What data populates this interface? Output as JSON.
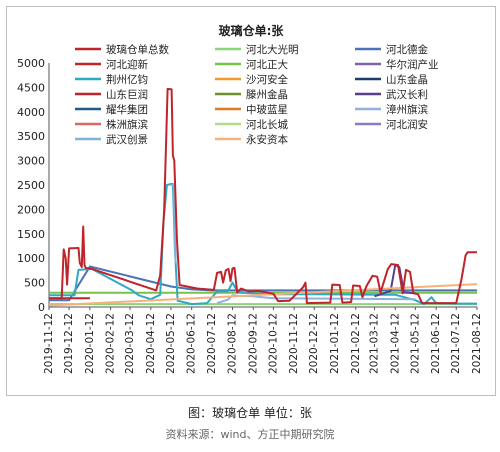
{
  "caption": "图：玻璃仓单 单位：张",
  "source": "资料来源：wind、方正中期研究院",
  "chart_data": {
    "type": "line",
    "title": "玻璃仓单:张",
    "xlabel": "",
    "ylabel": "",
    "ylim": [
      0,
      5000
    ],
    "yticks": [
      0,
      500,
      1000,
      1500,
      2000,
      2500,
      3000,
      3500,
      4000,
      4500,
      5000
    ],
    "xlim": [
      "2019-11-12",
      "2021-08-12"
    ],
    "xticks": [
      "2019-11-12",
      "2019-12-12",
      "2020-01-12",
      "2020-02-12",
      "2020-03-12",
      "2020-04-12",
      "2020-05-12",
      "2020-06-12",
      "2020-07-12",
      "2020-08-12",
      "2020-09-12",
      "2020-10-12",
      "2020-11-12",
      "2020-12-12",
      "2021-01-12",
      "2021-02-12",
      "2021-03-12",
      "2021-04-12",
      "2021-05-12",
      "2021-06-12",
      "2021-07-12",
      "2021-08-12"
    ],
    "grid": false,
    "legend": "top",
    "series": [
      {
        "name": "玻璃仓单总数",
        "color": "#c0242b",
        "points": [
          [
            "2019-11-12",
            180
          ],
          [
            "2019-12-01",
            180
          ],
          [
            "2019-12-04",
            1180
          ],
          [
            "2019-12-07",
            1000
          ],
          [
            "2019-12-09",
            460
          ],
          [
            "2019-12-12",
            1200
          ],
          [
            "2019-12-26",
            1210
          ],
          [
            "2019-12-28",
            900
          ],
          [
            "2019-12-31",
            820
          ],
          [
            "2020-01-02",
            1650
          ],
          [
            "2020-01-04",
            860
          ],
          [
            "2020-01-06",
            800
          ],
          [
            "2020-01-15",
            780
          ],
          [
            "2020-04-20",
            340
          ],
          [
            "2020-04-26",
            650
          ],
          [
            "2020-05-02",
            2000
          ],
          [
            "2020-05-07",
            4470
          ],
          [
            "2020-05-13",
            4460
          ],
          [
            "2020-05-15",
            3100
          ],
          [
            "2020-05-17",
            3000
          ],
          [
            "2020-05-21",
            1400
          ],
          [
            "2020-05-25",
            450
          ],
          [
            "2020-06-20",
            380
          ],
          [
            "2020-07-15",
            350
          ],
          [
            "2020-07-20",
            700
          ],
          [
            "2020-07-26",
            720
          ],
          [
            "2020-07-29",
            500
          ],
          [
            "2020-08-02",
            750
          ],
          [
            "2020-08-06",
            780
          ],
          [
            "2020-08-09",
            530
          ],
          [
            "2020-08-12",
            790
          ],
          [
            "2020-08-15",
            800
          ],
          [
            "2020-08-19",
            300
          ],
          [
            "2020-08-25",
            380
          ],
          [
            "2020-09-05",
            320
          ],
          [
            "2020-09-20",
            330
          ],
          [
            "2020-10-12",
            270
          ],
          [
            "2020-10-19",
            120
          ],
          [
            "2020-11-05",
            130
          ],
          [
            "2020-11-25",
            400
          ],
          [
            "2020-11-29",
            500
          ],
          [
            "2020-12-01",
            80
          ],
          [
            "2021-01-05",
            90
          ],
          [
            "2021-01-08",
            460
          ],
          [
            "2021-01-19",
            450
          ],
          [
            "2021-01-23",
            90
          ],
          [
            "2021-02-05",
            100
          ],
          [
            "2021-02-08",
            440
          ],
          [
            "2021-02-18",
            430
          ],
          [
            "2021-02-22",
            200
          ],
          [
            "2021-02-28",
            430
          ],
          [
            "2021-03-09",
            640
          ],
          [
            "2021-03-16",
            620
          ],
          [
            "2021-03-21",
            300
          ],
          [
            "2021-04-01",
            780
          ],
          [
            "2021-04-06",
            880
          ],
          [
            "2021-04-16",
            860
          ],
          [
            "2021-04-23",
            280
          ],
          [
            "2021-04-28",
            760
          ],
          [
            "2021-05-04",
            720
          ],
          [
            "2021-05-09",
            280
          ],
          [
            "2021-05-16",
            260
          ],
          [
            "2021-05-22",
            80
          ],
          [
            "2021-07-12",
            80
          ],
          [
            "2021-07-20",
            580
          ],
          [
            "2021-07-26",
            1060
          ],
          [
            "2021-07-29",
            1120
          ],
          [
            "2021-08-12",
            1120
          ]
        ]
      },
      {
        "name": "河北大光明",
        "color": "#8ed27a",
        "points": [
          [
            "2019-11-12",
            60
          ],
          [
            "2021-08-12",
            60
          ]
        ]
      },
      {
        "name": "河北德金",
        "color": "#4a74b5",
        "points": [
          [
            "2019-11-12",
            140
          ],
          [
            "2019-12-12",
            140
          ],
          [
            "2020-01-12",
            830
          ],
          [
            "2020-05-12",
            420
          ],
          [
            "2020-06-12",
            360
          ],
          [
            "2020-07-12",
            340
          ],
          [
            "2020-08-12",
            340
          ],
          [
            "2021-08-12",
            340
          ]
        ]
      },
      {
        "name": "河北迎新",
        "color": "#c0242b",
        "points": [
          [
            "2019-11-12",
            180
          ],
          [
            "2020-01-12",
            180
          ]
        ]
      },
      {
        "name": "河北正大",
        "color": "#7ac14a",
        "points": [
          [
            "2019-11-12",
            290
          ],
          [
            "2021-08-12",
            290
          ]
        ]
      },
      {
        "name": "华尔润产业",
        "color": "#8064a2",
        "points": []
      },
      {
        "name": "荆州亿钧",
        "color": "#2ea9c4",
        "points": [
          [
            "2019-11-12",
            240
          ],
          [
            "2019-12-20",
            240
          ],
          [
            "2019-12-26",
            760
          ],
          [
            "2020-01-15",
            780
          ],
          [
            "2020-03-15",
            340
          ],
          [
            "2020-03-25",
            240
          ],
          [
            "2020-04-12",
            160
          ],
          [
            "2020-04-26",
            250
          ],
          [
            "2020-05-01",
            1750
          ],
          [
            "2020-05-06",
            2500
          ],
          [
            "2020-05-12",
            2520
          ],
          [
            "2020-05-15",
            2520
          ],
          [
            "2020-05-18",
            1200
          ],
          [
            "2020-05-22",
            130
          ],
          [
            "2020-06-12",
            60
          ],
          [
            "2020-07-05",
            80
          ],
          [
            "2020-07-20",
            320
          ],
          [
            "2020-08-05",
            320
          ],
          [
            "2020-08-12",
            500
          ],
          [
            "2020-08-20",
            300
          ],
          [
            "2020-10-12",
            260
          ],
          [
            "2020-12-12",
            260
          ],
          [
            "2021-04-12",
            250
          ],
          [
            "2021-05-12",
            140
          ],
          [
            "2021-05-25",
            60
          ],
          [
            "2021-06-05",
            200
          ],
          [
            "2021-06-12",
            80
          ],
          [
            "2021-07-12",
            70
          ],
          [
            "2021-08-12",
            70
          ]
        ]
      },
      {
        "name": "沙河安全",
        "color": "#f39a2b",
        "points": []
      },
      {
        "name": "山东金晶",
        "color": "#1f3a6b",
        "points": []
      },
      {
        "name": "山东巨润",
        "color": "#c0242b",
        "points": []
      },
      {
        "name": "滕州金晶",
        "color": "#6f8f2a",
        "points": []
      },
      {
        "name": "武汉长利",
        "color": "#5c3d8c",
        "points": [
          [
            "2021-03-12",
            220
          ],
          [
            "2021-04-05",
            330
          ],
          [
            "2021-04-12",
            860
          ],
          [
            "2021-04-18",
            820
          ],
          [
            "2021-04-25",
            300
          ],
          [
            "2021-05-12",
            280
          ]
        ]
      },
      {
        "name": "耀华集团",
        "color": "#1f5c8c",
        "points": []
      },
      {
        "name": "中玻蓝星",
        "color": "#e07b22",
        "points": []
      },
      {
        "name": "漳州旗滨",
        "color": "#8fb1dc",
        "points": [
          [
            "2020-07-20",
            80
          ],
          [
            "2020-08-05",
            150
          ],
          [
            "2020-08-12",
            240
          ],
          [
            "2020-08-20",
            230
          ],
          [
            "2020-09-12",
            220
          ],
          [
            "2020-10-12",
            180
          ],
          [
            "2021-05-12",
            160
          ]
        ]
      },
      {
        "name": "株洲旗滨",
        "color": "#e06666",
        "points": []
      },
      {
        "name": "河北长城",
        "color": "#b6d98a",
        "points": []
      },
      {
        "name": "河北润安",
        "color": "#8e7cc3",
        "points": []
      },
      {
        "name": "武汉创景",
        "color": "#7fb3d5",
        "points": [
          [
            "2020-05-12",
            2500
          ],
          [
            "2020-05-16",
            2500
          ],
          [
            "2020-05-19",
            900
          ]
        ]
      },
      {
        "name": "永安资本",
        "color": "#f6b17a",
        "points": [
          [
            "2019-11-12",
            30
          ],
          [
            "2021-08-12",
            470
          ]
        ]
      }
    ]
  }
}
